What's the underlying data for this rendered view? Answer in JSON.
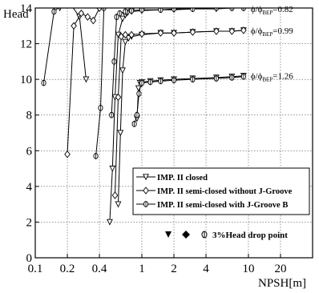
{
  "chart_data": {
    "type": "line",
    "xlabel": "NPSH[m]",
    "ylabel": "Head",
    "x_scale": "log",
    "xlim": [
      0.1,
      40
    ],
    "ylim": [
      0,
      14
    ],
    "x_ticks": [
      {
        "v": 0.1,
        "label": "0.1"
      },
      {
        "v": 0.2,
        "label": "0.2"
      },
      {
        "v": 0.4,
        "label": "0.4"
      },
      {
        "v": 1,
        "label": "1"
      },
      {
        "v": 2,
        "label": "2"
      },
      {
        "v": 4,
        "label": "4"
      },
      {
        "v": 10,
        "label": "10"
      },
      {
        "v": 20,
        "label": "20"
      }
    ],
    "y_ticks": [
      {
        "v": 0,
        "label": "0"
      },
      {
        "v": 2,
        "label": "2"
      },
      {
        "v": 4,
        "label": "4"
      },
      {
        "v": 6,
        "label": "6"
      },
      {
        "v": 8,
        "label": "8"
      },
      {
        "v": 10,
        "label": "10"
      },
      {
        "v": 12,
        "label": "12"
      },
      {
        "v": 14,
        "label": "14"
      }
    ],
    "grid": true,
    "annotations": [
      {
        "text": "ϕ/ϕBEP=0.82",
        "x": 10.5,
        "y": 13.95
      },
      {
        "text": "ϕ/ϕBEP=0.99",
        "x": 10.5,
        "y": 12.75
      },
      {
        "text": "ϕ/ϕBEP=1.26",
        "x": 10.5,
        "y": 10.2
      }
    ],
    "legend_position": "lower-right",
    "legend_note": "3%Head drop point",
    "series": [
      {
        "name": "IMP. II closed",
        "marker": "triangle-down",
        "color": "#000000",
        "curves": [
          {
            "x": [
              0.17,
              0.21,
              0.26,
              0.3
            ],
            "y": [
              14.0,
              14.3,
              13.5,
              10.0
            ]
          },
          {
            "x": [
              0.5,
              0.53,
              0.56,
              0.6,
              0.66,
              0.7,
              0.72,
              0.74,
              0.8,
              1.0,
              1.5,
              2.0,
              3.0,
              5.0,
              7.0,
              9.0
            ],
            "y": [
              2.0,
              5.0,
              9.0,
              12.5,
              13.4,
              13.6,
              13.7,
              13.75,
              13.8,
              13.85,
              13.9,
              13.9,
              13.95,
              13.95,
              14.0,
              14.0
            ]
          },
          {
            "x": [
              0.6,
              0.63,
              0.66,
              0.7,
              0.75,
              0.8,
              1.0,
              1.5,
              2.0,
              3.0,
              5.0,
              7.0,
              9.0
            ],
            "y": [
              3.0,
              7.0,
              10.5,
              12.1,
              12.3,
              12.4,
              12.5,
              12.6,
              12.6,
              12.65,
              12.7,
              12.7,
              12.75
            ]
          },
          {
            "x": [
              0.9,
              0.93,
              0.96,
              1.0,
              1.2,
              1.5,
              2.0,
              3.0,
              5.0,
              7.0,
              9.0
            ],
            "y": [
              7.8,
              9.5,
              9.8,
              9.85,
              9.9,
              9.95,
              10.0,
              10.05,
              10.1,
              10.15,
              10.2
            ]
          }
        ]
      },
      {
        "name": "IMP. II semi-closed without J-Groove",
        "marker": "diamond",
        "color": "#000000",
        "curves": [
          {
            "x": [
              0.2,
              0.23,
              0.27,
              0.31,
              0.35,
              0.4
            ],
            "y": [
              5.8,
              13.0,
              13.7,
              13.5,
              13.3,
              14.0
            ]
          },
          {
            "x": [
              0.56,
              0.6,
              0.64,
              0.7,
              0.8,
              1.0,
              1.5,
              2.0,
              3.0,
              5.0,
              7.0,
              9.0
            ],
            "y": [
              3.5,
              9.0,
              12.4,
              12.5,
              12.5,
              12.55,
              12.6,
              12.6,
              12.65,
              12.7,
              12.7,
              12.75
            ]
          }
        ]
      },
      {
        "name": "IMP. II semi-closed with J-Groove B",
        "marker": "circle-bar",
        "color": "#000000",
        "curves": [
          {
            "x": [
              0.12,
              0.15,
              0.18
            ],
            "y": [
              9.8,
              13.8,
              14.2
            ]
          },
          {
            "x": [
              0.37,
              0.41,
              0.44
            ],
            "y": [
              5.7,
              8.4,
              14.0
            ]
          },
          {
            "x": [
              0.52,
              0.55,
              0.58,
              0.62,
              0.7,
              0.8,
              1.0,
              1.5,
              2.0,
              3.0,
              5.0,
              7.0,
              9.0
            ],
            "y": [
              8.0,
              11.0,
              13.5,
              13.7,
              13.8,
              13.85,
              13.9,
              13.9,
              13.95,
              13.95,
              14.0,
              14.0,
              14.0
            ]
          },
          {
            "x": [
              0.85,
              0.9,
              0.94,
              0.98,
              1.0,
              1.2,
              1.5,
              2.0,
              3.0,
              5.0,
              7.0,
              9.0
            ],
            "y": [
              7.5,
              8.0,
              9.2,
              9.75,
              9.8,
              9.85,
              9.9,
              9.95,
              10.0,
              10.05,
              10.1,
              10.15
            ]
          }
        ]
      }
    ]
  }
}
